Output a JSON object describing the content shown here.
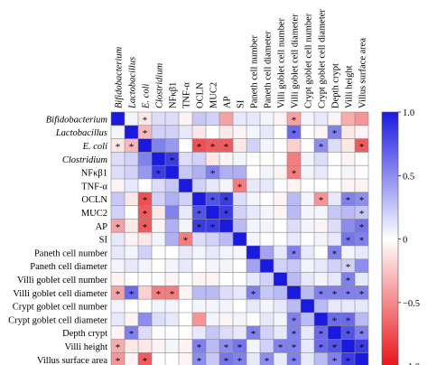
{
  "chart_data": {
    "type": "heatmap",
    "labels": [
      "Bifidobacterium",
      "Lactobacillus",
      "E. coli",
      "Clostridium",
      "NFκβ1",
      "TNF-α",
      "OCLN",
      "MUC2",
      "AP",
      "SI",
      "Paneth cell number",
      "Paneth cell diameter",
      "Villi goblet cell number",
      "Villi goblet cell diameter",
      "Crypt goblet cell number",
      "Crypt goblet cell diameter",
      "Depth crypt",
      "Villi height",
      "Villus surface area"
    ],
    "italic_labels": [
      true,
      true,
      true,
      true,
      false,
      false,
      false,
      false,
      false,
      false,
      false,
      false,
      false,
      false,
      false,
      false,
      false,
      false,
      false
    ],
    "matrix": [
      [
        1.0,
        0.05,
        -0.1,
        0.15,
        0.15,
        -0.05,
        0.25,
        0.2,
        -0.4,
        0.1,
        0.1,
        0.05,
        -0.05,
        -0.4,
        0.05,
        0.1,
        -0.05,
        -0.35,
        -0.45
      ],
      [
        0.05,
        1.0,
        -0.3,
        0.2,
        0.2,
        0.1,
        -0.1,
        0.0,
        -0.1,
        -0.05,
        0.05,
        0.1,
        0.0,
        0.65,
        0.0,
        -0.05,
        0.55,
        -0.1,
        -0.05
      ],
      [
        -0.1,
        -0.3,
        1.0,
        0.55,
        0.45,
        0.0,
        -0.75,
        -0.7,
        -0.7,
        -0.1,
        0.2,
        0.05,
        0.0,
        -0.2,
        0.0,
        0.5,
        0.15,
        -0.1,
        -0.7
      ],
      [
        0.15,
        0.2,
        0.55,
        1.0,
        0.85,
        0.15,
        0.2,
        -0.1,
        -0.05,
        0.05,
        0.0,
        0.0,
        0.0,
        -0.55,
        0.05,
        0.15,
        0.0,
        -0.05,
        0.0
      ],
      [
        0.15,
        0.2,
        0.45,
        0.85,
        1.0,
        0.25,
        0.35,
        0.55,
        0.35,
        0.35,
        0.0,
        0.05,
        -0.05,
        -0.55,
        0.05,
        0.1,
        0.0,
        0.05,
        0.0
      ],
      [
        -0.05,
        0.1,
        0.0,
        0.15,
        0.25,
        1.0,
        0.2,
        0.1,
        0.05,
        -0.55,
        0.1,
        0.1,
        0.0,
        -0.05,
        0.0,
        0.0,
        0.0,
        -0.05,
        -0.05
      ],
      [
        0.25,
        -0.1,
        -0.75,
        0.2,
        0.35,
        0.2,
        1.0,
        0.75,
        0.85,
        0.15,
        0.05,
        0.0,
        -0.05,
        0.3,
        0.05,
        -0.45,
        0.1,
        0.55,
        0.5
      ],
      [
        0.2,
        0.0,
        -0.7,
        -0.1,
        0.55,
        0.1,
        0.75,
        1.0,
        0.85,
        0.2,
        0.1,
        0.05,
        -0.05,
        0.3,
        0.05,
        0.05,
        0.25,
        0.3,
        0.25
      ],
      [
        -0.4,
        -0.1,
        -0.7,
        -0.05,
        0.35,
        0.05,
        0.85,
        0.85,
        1.0,
        0.3,
        0.05,
        0.05,
        0.0,
        0.15,
        0.05,
        -0.05,
        0.15,
        0.5,
        0.6
      ],
      [
        0.1,
        -0.05,
        -0.1,
        0.05,
        0.35,
        -0.55,
        0.15,
        0.2,
        0.3,
        1.0,
        0.05,
        0.0,
        0.0,
        0.1,
        0.0,
        0.05,
        0.1,
        0.6,
        0.55
      ],
      [
        0.1,
        0.05,
        0.2,
        0.0,
        0.0,
        0.1,
        0.05,
        0.1,
        0.05,
        0.05,
        1.0,
        0.4,
        0.1,
        0.55,
        0.1,
        0.0,
        0.55,
        0.05,
        0.1
      ],
      [
        0.05,
        0.1,
        0.05,
        0.0,
        0.05,
        0.1,
        0.0,
        0.05,
        0.05,
        0.0,
        0.4,
        1.0,
        0.2,
        0.25,
        0.05,
        0.1,
        0.2,
        0.2,
        0.5
      ],
      [
        -0.05,
        0.0,
        0.0,
        0.0,
        -0.05,
        0.0,
        -0.05,
        -0.05,
        0.0,
        0.0,
        0.1,
        0.2,
        1.0,
        0.3,
        0.1,
        0.05,
        0.1,
        0.55,
        0.1
      ],
      [
        -0.4,
        0.65,
        -0.2,
        -0.55,
        -0.55,
        -0.05,
        0.3,
        0.3,
        0.15,
        0.1,
        0.55,
        0.25,
        0.3,
        1.0,
        0.3,
        0.55,
        0.55,
        0.55,
        0.55
      ],
      [
        0.05,
        0.0,
        0.0,
        0.05,
        0.05,
        0.0,
        0.05,
        0.05,
        0.05,
        0.0,
        0.1,
        0.05,
        0.1,
        0.3,
        1.0,
        0.3,
        0.1,
        0.1,
        0.1
      ],
      [
        0.1,
        -0.05,
        0.5,
        0.15,
        0.1,
        0.0,
        -0.45,
        0.05,
        -0.05,
        0.05,
        0.0,
        0.1,
        0.05,
        0.55,
        0.3,
        1.0,
        0.65,
        0.65,
        0.3
      ],
      [
        -0.05,
        0.55,
        0.15,
        0.0,
        0.0,
        0.0,
        0.1,
        0.25,
        0.15,
        0.1,
        0.55,
        0.2,
        0.1,
        0.55,
        0.1,
        0.65,
        1.0,
        0.75,
        0.55
      ],
      [
        -0.35,
        -0.1,
        -0.1,
        -0.05,
        0.05,
        -0.05,
        0.55,
        0.3,
        0.5,
        0.6,
        0.05,
        0.2,
        0.55,
        0.55,
        0.1,
        0.65,
        0.75,
        1.0,
        0.85
      ],
      [
        -0.45,
        -0.05,
        -0.7,
        0.0,
        0.0,
        -0.05,
        0.5,
        0.25,
        0.6,
        0.55,
        0.1,
        0.5,
        0.1,
        0.55,
        0.1,
        0.3,
        0.55,
        0.85,
        1.0
      ]
    ],
    "significant": [
      [
        0,
        2
      ],
      [
        0,
        13
      ],
      [
        1,
        2
      ],
      [
        1,
        13
      ],
      [
        1,
        16
      ],
      [
        2,
        0
      ],
      [
        2,
        1
      ],
      [
        2,
        6
      ],
      [
        2,
        7
      ],
      [
        2,
        8
      ],
      [
        2,
        15
      ],
      [
        2,
        18
      ],
      [
        3,
        4
      ],
      [
        4,
        3
      ],
      [
        4,
        7
      ],
      [
        4,
        13
      ],
      [
        5,
        9
      ],
      [
        6,
        2
      ],
      [
        6,
        7
      ],
      [
        6,
        8
      ],
      [
        6,
        15
      ],
      [
        6,
        17
      ],
      [
        6,
        18
      ],
      [
        7,
        2
      ],
      [
        7,
        6
      ],
      [
        7,
        8
      ],
      [
        7,
        18
      ],
      [
        8,
        0
      ],
      [
        8,
        2
      ],
      [
        8,
        6
      ],
      [
        8,
        7
      ],
      [
        8,
        18
      ],
      [
        9,
        5
      ],
      [
        9,
        17
      ],
      [
        9,
        18
      ],
      [
        10,
        13
      ],
      [
        10,
        16
      ],
      [
        11,
        17
      ],
      [
        12,
        17
      ],
      [
        13,
        0
      ],
      [
        13,
        1
      ],
      [
        13,
        3
      ],
      [
        13,
        4
      ],
      [
        13,
        10
      ],
      [
        13,
        15
      ],
      [
        13,
        16
      ],
      [
        13,
        17
      ],
      [
        13,
        18
      ],
      [
        15,
        13
      ],
      [
        15,
        16
      ],
      [
        15,
        17
      ],
      [
        16,
        1
      ],
      [
        16,
        10
      ],
      [
        16,
        13
      ],
      [
        16,
        15
      ],
      [
        16,
        17
      ],
      [
        16,
        18
      ],
      [
        17,
        0
      ],
      [
        17,
        6
      ],
      [
        17,
        8
      ],
      [
        17,
        9
      ],
      [
        17,
        12
      ],
      [
        17,
        13
      ],
      [
        17,
        15
      ],
      [
        17,
        16
      ],
      [
        17,
        18
      ],
      [
        18,
        0
      ],
      [
        18,
        2
      ],
      [
        18,
        6
      ],
      [
        18,
        8
      ],
      [
        18,
        9
      ],
      [
        18,
        11
      ],
      [
        18,
        13
      ],
      [
        18,
        16
      ],
      [
        18,
        17
      ]
    ],
    "significance_symbol": "*",
    "colorbar": {
      "ticks": [
        "1.0",
        "0.5",
        "0",
        "−0.5",
        "−1.0"
      ],
      "values": [
        1.0,
        0.5,
        0,
        -0.5,
        -1.0
      ],
      "high_color": "#1a1adf",
      "mid_color": "#ffffff",
      "low_color": "#e8141b",
      "range": [
        -1.0,
        1.0
      ]
    }
  }
}
